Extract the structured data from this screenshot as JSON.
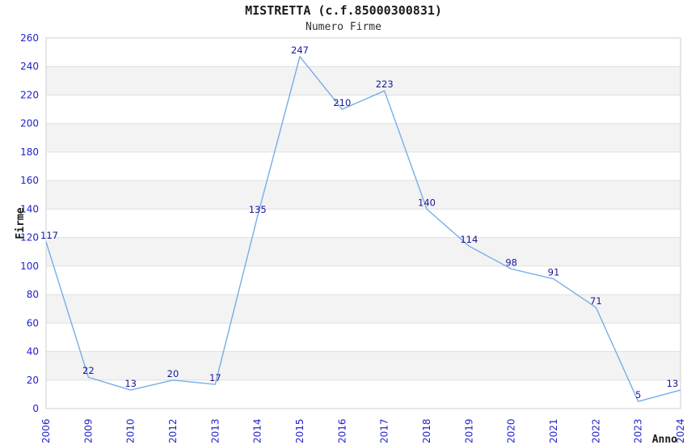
{
  "chart_data": {
    "type": "line",
    "title": "MISTRETTA (c.f.85000300831)",
    "subtitle": "Numero Firme",
    "xlabel": "Anno",
    "ylabel": "Firme",
    "categories": [
      "2006",
      "2009",
      "2010",
      "2012",
      "2013",
      "2014",
      "2015",
      "2016",
      "2017",
      "2018",
      "2019",
      "2020",
      "2021",
      "2022",
      "2023",
      "2024"
    ],
    "values": [
      117,
      22,
      13,
      20,
      17,
      135,
      247,
      210,
      223,
      140,
      114,
      98,
      91,
      71,
      5,
      13
    ],
    "ylim": [
      0,
      260
    ],
    "ytick_step": 20,
    "grid": "horizontal",
    "band_fill": "alternating",
    "legend": "none",
    "colors": {
      "line": "#78ade8",
      "data_label": "#181899",
      "tick_label": "#2222cc",
      "band": "#f3f3f3",
      "grid_line": "#e0e0e0",
      "border": "#cfcfcf"
    }
  }
}
